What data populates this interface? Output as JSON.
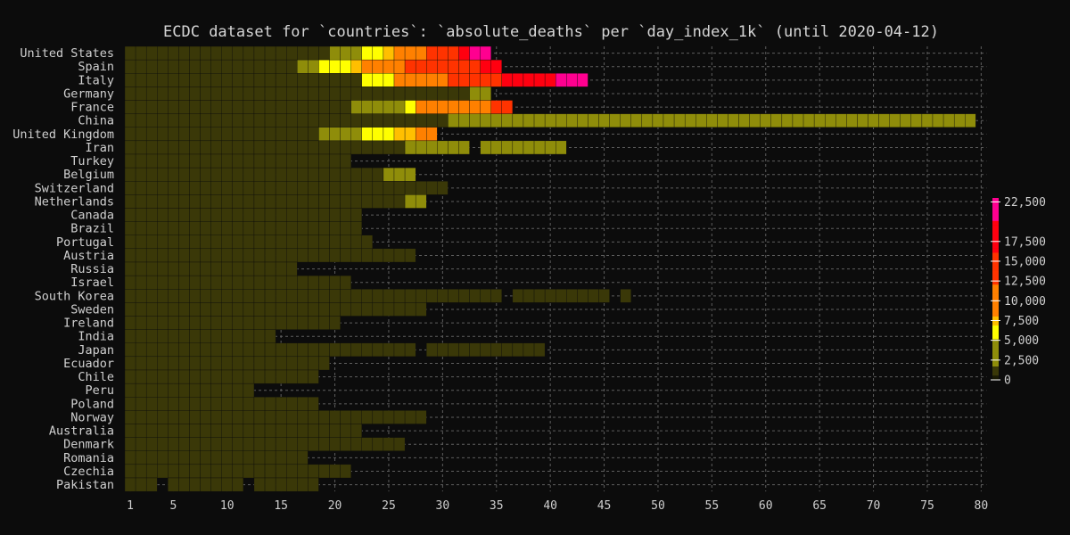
{
  "chart_data": {
    "type": "heatmap",
    "title": "ECDC dataset for `countries`: `absolute_deaths` per `day_index_1k` (until 2020-04-12)",
    "x_ticks": [
      1,
      5,
      10,
      15,
      20,
      25,
      30,
      35,
      40,
      45,
      50,
      55,
      60,
      65,
      70,
      75,
      80
    ],
    "xlim": [
      1,
      80
    ],
    "colorbar": {
      "ticks": [
        "0",
        "2,500",
        "5,000",
        "7,500",
        "10,000",
        "12,500",
        "15,000",
        "17,500",
        "22,500"
      ],
      "tick_values": [
        0,
        2500,
        5000,
        7500,
        10000,
        12500,
        15000,
        17500,
        22500
      ],
      "range": [
        0,
        23000
      ]
    },
    "colors": {
      "background": "#0c0c0c",
      "scale": [
        "#3a3808",
        "#8f8d0a",
        "#ffff00",
        "#ffbf00",
        "#ff8000",
        "#ff3300",
        "#ff0010",
        "#ff0090"
      ]
    },
    "grid": true,
    "rows": [
      {
        "label": "United States",
        "values": [
          0,
          0,
          0,
          0,
          0,
          0,
          0,
          0,
          0,
          0,
          0,
          0,
          0,
          0,
          0,
          0,
          0,
          0,
          0,
          2600,
          2900,
          3300,
          6000,
          6600,
          7200,
          8700,
          9600,
          11000,
          12600,
          13700,
          15700,
          17400,
          20000,
          21400
        ]
      },
      {
        "label": "Spain",
        "values": [
          0,
          0,
          0,
          0,
          0,
          0,
          0,
          0,
          0,
          0,
          0,
          0,
          0,
          0,
          0,
          0,
          4000,
          4600,
          5200,
          6000,
          6200,
          7500,
          8200,
          9300,
          10200,
          11200,
          12100,
          12700,
          13000,
          13400,
          14100,
          14800,
          15500,
          16000,
          16400
        ]
      },
      {
        "label": "Italy",
        "values": [
          0,
          0,
          0,
          0,
          0,
          0,
          0,
          0,
          0,
          0,
          0,
          0,
          0,
          0,
          0,
          0,
          0,
          0,
          0,
          0,
          0,
          0,
          6100,
          6200,
          6800,
          8200,
          8800,
          9600,
          10800,
          11800,
          12400,
          13100,
          13900,
          14700,
          15400,
          16500,
          17300,
          17800,
          18400,
          19000,
          20700,
          21500,
          22200
        ]
      },
      {
        "label": "Germany",
        "values": [
          0,
          0,
          0,
          0,
          0,
          0,
          0,
          0,
          0,
          0,
          0,
          0,
          0,
          0,
          0,
          0,
          0,
          0,
          0,
          0,
          0,
          0,
          0,
          0,
          0,
          0,
          0,
          0,
          0,
          0,
          0,
          0,
          2600,
          2800
        ]
      },
      {
        "label": "France",
        "values": [
          0,
          0,
          0,
          0,
          0,
          0,
          0,
          0,
          0,
          0,
          0,
          0,
          0,
          0,
          0,
          0,
          0,
          0,
          0,
          0,
          0,
          2600,
          2800,
          3100,
          3400,
          3900,
          6100,
          8100,
          8600,
          8900,
          9400,
          10300,
          10900,
          11600,
          12200,
          13200
        ]
      },
      {
        "label": "China",
        "values": [
          0,
          0,
          0,
          0,
          0,
          0,
          0,
          0,
          0,
          0,
          0,
          0,
          0,
          0,
          0,
          0,
          0,
          0,
          0,
          0,
          0,
          0,
          0,
          0,
          0,
          0,
          0,
          0,
          0,
          0,
          3300,
          3300,
          3300,
          3300,
          3300,
          3300,
          3300,
          3300,
          3300,
          3300,
          3300,
          3300,
          3300,
          3300,
          3300,
          3300,
          3300,
          3300,
          3300,
          3300,
          3300,
          3300,
          3300,
          3300,
          3300,
          3300,
          3300,
          3300,
          3300,
          3300,
          3300,
          3300,
          3300,
          3300,
          3300,
          3300,
          3300,
          3300,
          3300,
          3300,
          3300,
          3300,
          3300,
          3300,
          3300,
          3300,
          3300,
          3300,
          3300
        ]
      },
      {
        "label": "United Kingdom",
        "values": [
          0,
          0,
          0,
          0,
          0,
          0,
          0,
          0,
          0,
          0,
          0,
          0,
          0,
          0,
          0,
          0,
          0,
          0,
          3000,
          3300,
          3600,
          4300,
          5300,
          6100,
          6800,
          7200,
          7900,
          8600,
          9200
        ]
      },
      {
        "label": "Iran",
        "values": [
          0,
          0,
          0,
          0,
          0,
          0,
          0,
          0,
          0,
          0,
          0,
          0,
          0,
          0,
          0,
          0,
          0,
          0,
          0,
          0,
          0,
          0,
          0,
          0,
          0,
          0,
          2800,
          2900,
          3000,
          3200,
          3300,
          3400,
          null,
          3500,
          3600,
          3700,
          3700,
          3800,
          3900,
          4000,
          4100
        ]
      },
      {
        "label": "Turkey",
        "values": [
          0,
          0,
          0,
          0,
          0,
          0,
          0,
          0,
          0,
          0,
          0,
          0,
          0,
          0,
          0,
          0,
          0,
          0,
          0,
          0,
          0
        ]
      },
      {
        "label": "Belgium",
        "values": [
          0,
          0,
          0,
          0,
          0,
          0,
          0,
          0,
          0,
          0,
          0,
          0,
          0,
          0,
          0,
          0,
          0,
          0,
          0,
          0,
          0,
          0,
          0,
          0,
          2800,
          3000,
          3400
        ]
      },
      {
        "label": "Switzerland",
        "values": [
          0,
          0,
          0,
          0,
          0,
          0,
          0,
          0,
          0,
          0,
          0,
          0,
          0,
          0,
          0,
          0,
          0,
          0,
          0,
          0,
          0,
          0,
          0,
          0,
          0,
          0,
          0,
          0,
          0,
          0
        ]
      },
      {
        "label": "Netherlands",
        "values": [
          0,
          0,
          0,
          0,
          0,
          0,
          0,
          0,
          0,
          0,
          0,
          0,
          0,
          0,
          0,
          0,
          0,
          0,
          0,
          0,
          0,
          0,
          0,
          0,
          0,
          0,
          2600,
          2800
        ]
      },
      {
        "label": "Canada",
        "values": [
          0,
          0,
          0,
          0,
          0,
          0,
          0,
          0,
          0,
          0,
          0,
          0,
          0,
          0,
          0,
          0,
          0,
          0,
          0,
          0,
          0,
          0
        ]
      },
      {
        "label": "Brazil",
        "values": [
          0,
          0,
          0,
          0,
          0,
          0,
          0,
          0,
          0,
          0,
          0,
          0,
          0,
          0,
          0,
          0,
          0,
          0,
          0,
          0,
          0,
          0
        ]
      },
      {
        "label": "Portugal",
        "values": [
          0,
          0,
          0,
          0,
          0,
          0,
          0,
          0,
          0,
          0,
          0,
          0,
          0,
          0,
          0,
          0,
          0,
          0,
          0,
          0,
          0,
          0,
          0
        ]
      },
      {
        "label": "Austria",
        "values": [
          0,
          0,
          0,
          0,
          0,
          0,
          0,
          0,
          0,
          0,
          0,
          0,
          0,
          0,
          0,
          0,
          0,
          0,
          0,
          0,
          0,
          0,
          0,
          0,
          0,
          0,
          0
        ]
      },
      {
        "label": "Russia",
        "values": [
          0,
          0,
          0,
          0,
          0,
          0,
          0,
          0,
          0,
          0,
          0,
          0,
          0,
          0,
          0,
          0
        ]
      },
      {
        "label": "Israel",
        "values": [
          0,
          0,
          0,
          0,
          0,
          0,
          0,
          0,
          0,
          0,
          0,
          0,
          0,
          0,
          0,
          0,
          0,
          0,
          0,
          0,
          0
        ]
      },
      {
        "label": "South Korea",
        "values": [
          0,
          0,
          0,
          0,
          0,
          0,
          0,
          0,
          0,
          0,
          0,
          0,
          0,
          0,
          0,
          0,
          0,
          0,
          0,
          0,
          0,
          0,
          0,
          0,
          0,
          0,
          0,
          0,
          0,
          0,
          0,
          0,
          0,
          0,
          0,
          null,
          0,
          0,
          0,
          0,
          0,
          0,
          0,
          0,
          0,
          null,
          0
        ]
      },
      {
        "label": "Sweden",
        "values": [
          0,
          0,
          0,
          0,
          0,
          0,
          0,
          0,
          0,
          0,
          0,
          0,
          0,
          0,
          0,
          0,
          0,
          0,
          0,
          0,
          0,
          0,
          0,
          0,
          0,
          0,
          0,
          0
        ]
      },
      {
        "label": "Ireland",
        "values": [
          0,
          0,
          0,
          0,
          0,
          0,
          0,
          0,
          0,
          0,
          0,
          0,
          0,
          0,
          0,
          0,
          0,
          0,
          0,
          0
        ]
      },
      {
        "label": "India",
        "values": [
          0,
          0,
          0,
          0,
          0,
          0,
          0,
          0,
          0,
          0,
          0,
          0,
          0,
          0
        ]
      },
      {
        "label": "Japan",
        "values": [
          0,
          0,
          0,
          0,
          0,
          0,
          0,
          0,
          0,
          0,
          0,
          0,
          0,
          0,
          0,
          0,
          0,
          0,
          0,
          0,
          0,
          0,
          0,
          0,
          0,
          0,
          0,
          null,
          0,
          0,
          0,
          0,
          0,
          0,
          0,
          0,
          0,
          0,
          0
        ]
      },
      {
        "label": "Ecuador",
        "values": [
          0,
          0,
          0,
          0,
          0,
          0,
          0,
          0,
          0,
          0,
          0,
          0,
          0,
          0,
          0,
          0,
          0,
          0,
          0
        ]
      },
      {
        "label": "Chile",
        "values": [
          0,
          0,
          0,
          0,
          0,
          0,
          0,
          0,
          0,
          0,
          0,
          0,
          0,
          0,
          0,
          0,
          0,
          0
        ]
      },
      {
        "label": "Peru",
        "values": [
          0,
          0,
          0,
          0,
          0,
          0,
          0,
          0,
          0,
          0,
          0,
          0
        ]
      },
      {
        "label": "Poland",
        "values": [
          0,
          0,
          0,
          0,
          0,
          0,
          0,
          0,
          0,
          0,
          0,
          0,
          0,
          0,
          0,
          0,
          0,
          0
        ]
      },
      {
        "label": "Norway",
        "values": [
          0,
          0,
          0,
          0,
          0,
          0,
          0,
          0,
          0,
          0,
          0,
          0,
          0,
          0,
          0,
          0,
          0,
          0,
          0,
          0,
          0,
          0,
          0,
          0,
          0,
          0,
          0,
          0
        ]
      },
      {
        "label": "Australia",
        "values": [
          0,
          0,
          0,
          0,
          0,
          0,
          0,
          0,
          0,
          0,
          0,
          0,
          0,
          0,
          0,
          0,
          0,
          0,
          0,
          0,
          0,
          0
        ]
      },
      {
        "label": "Denmark",
        "values": [
          0,
          0,
          0,
          0,
          0,
          0,
          0,
          0,
          0,
          0,
          0,
          0,
          0,
          0,
          0,
          0,
          0,
          0,
          0,
          0,
          0,
          0,
          0,
          0,
          0,
          0
        ]
      },
      {
        "label": "Romania",
        "values": [
          0,
          0,
          0,
          0,
          0,
          0,
          0,
          0,
          0,
          0,
          0,
          0,
          0,
          0,
          0,
          0,
          0
        ]
      },
      {
        "label": "Czechia",
        "values": [
          0,
          0,
          0,
          0,
          0,
          0,
          0,
          0,
          0,
          0,
          0,
          0,
          0,
          0,
          0,
          0,
          0,
          0,
          0,
          0,
          0
        ]
      },
      {
        "label": "Pakistan",
        "values": [
          0,
          0,
          0,
          null,
          0,
          0,
          0,
          0,
          0,
          0,
          0,
          null,
          0,
          0,
          0,
          0,
          0,
          0
        ]
      }
    ]
  }
}
